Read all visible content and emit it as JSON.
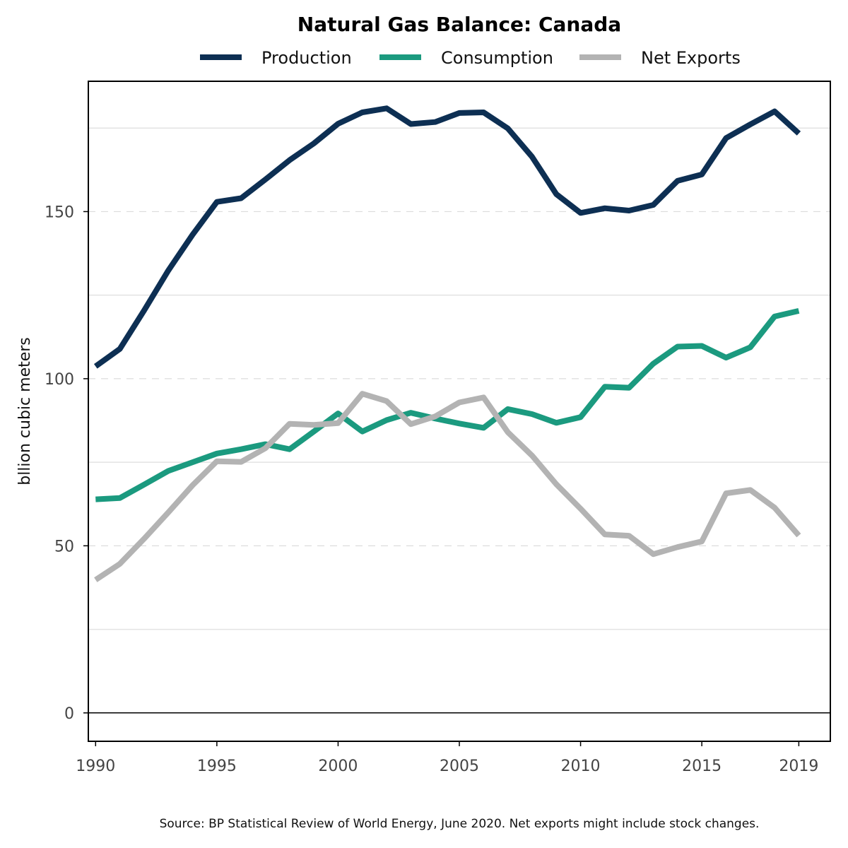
{
  "chart_data": {
    "type": "line",
    "title": "Natural Gas Balance: Canada",
    "xlabel": "",
    "ylabel": "bllion cubic meters",
    "xlim": [
      1989.7,
      2020.3
    ],
    "ylim": [
      -8.5,
      189
    ],
    "x_ticks": [
      1990,
      1995,
      2000,
      2005,
      2010,
      2015,
      2019
    ],
    "x_tick_labels": [
      "1990",
      "1995",
      "2000",
      "2005",
      "2010",
      "2015",
      "2019"
    ],
    "y_ticks": [
      0,
      50,
      100,
      150
    ],
    "y_tick_labels": [
      "0",
      "50",
      "100",
      "150"
    ],
    "y_minor_gridlines": [
      25,
      75,
      125,
      175
    ],
    "y_major_gridlines": [
      50,
      100,
      150
    ],
    "zero_line": 0,
    "legend_position": "top",
    "x": [
      1990,
      1991,
      1992,
      1993,
      1994,
      1995,
      1996,
      1997,
      1998,
      1999,
      2000,
      2001,
      2002,
      2003,
      2004,
      2005,
      2006,
      2007,
      2008,
      2009,
      2010,
      2011,
      2012,
      2013,
      2014,
      2015,
      2016,
      2017,
      2018,
      2019
    ],
    "series": [
      {
        "name": "Production",
        "color": "#0d2f53",
        "values": [
          103.7,
          108.9,
          120.4,
          132.4,
          143.1,
          152.9,
          154.0,
          159.6,
          165.4,
          170.4,
          176.3,
          179.7,
          180.9,
          176.2,
          176.8,
          179.5,
          179.7,
          174.9,
          166.4,
          155.2,
          149.6,
          151.0,
          150.3,
          152.0,
          159.2,
          161.1,
          172.0,
          176.1,
          180.0,
          173.4
        ]
      },
      {
        "name": "Consumption",
        "color": "#1b9a7f",
        "values": [
          63.9,
          64.3,
          68.3,
          72.4,
          75.0,
          77.6,
          78.9,
          80.4,
          78.9,
          84.2,
          89.6,
          84.2,
          87.6,
          89.8,
          88.1,
          86.6,
          85.3,
          90.9,
          89.4,
          86.8,
          88.5,
          97.6,
          97.3,
          104.5,
          109.6,
          109.8,
          106.3,
          109.4,
          118.6,
          120.3
        ]
      },
      {
        "name": "Net Exports",
        "color": "#b3b3b3",
        "values": [
          39.8,
          44.6,
          52.1,
          60.0,
          68.1,
          75.3,
          75.1,
          79.2,
          86.5,
          86.2,
          86.7,
          95.5,
          93.3,
          86.4,
          88.7,
          92.9,
          94.4,
          84.0,
          77.0,
          68.4,
          61.1,
          53.4,
          53.0,
          47.5,
          49.6,
          51.3,
          65.7,
          66.7,
          61.4,
          53.1
        ]
      }
    ],
    "source": "Source: BP Statistical Review of World Energy, June 2020. Net exports might include stock changes."
  }
}
